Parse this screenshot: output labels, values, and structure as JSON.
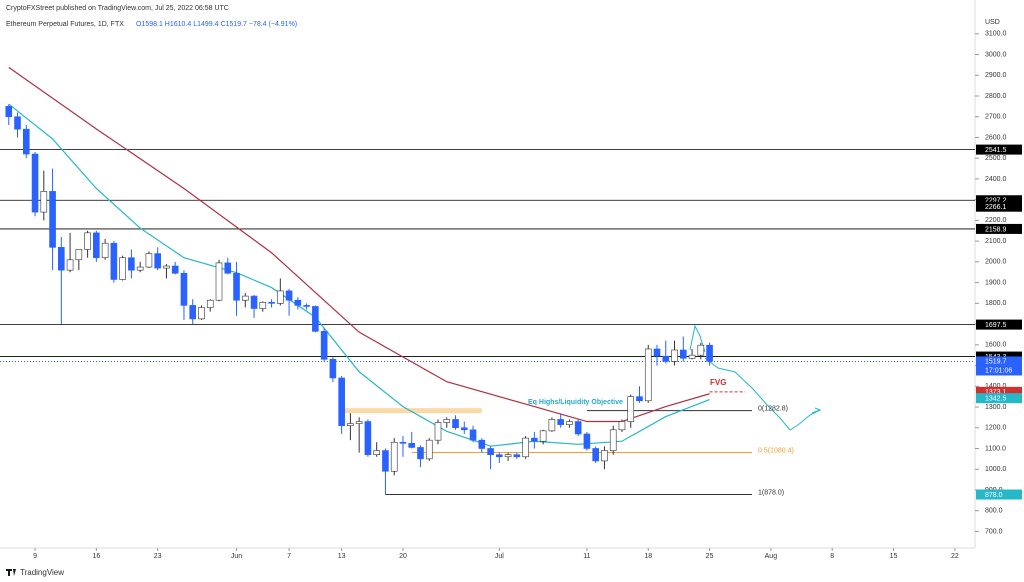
{
  "chart_data": {
    "type": "candlestick",
    "publisher": "CryptoFXStreet published on TradingView.com, Jul 25, 2022 06:58 UTC",
    "title": "Ethereum Perpetual Futures, 1D, FTX",
    "legend_text": "O1598.1 H1610.4 L1499.4 C1519.7 −78.4 (−4.91%)",
    "currency": "USD",
    "brand": "TradingView",
    "up_color": "#ffffff",
    "down_color": "#2962ff",
    "open": [
      2750,
      2700,
      2640,
      2520,
      2240,
      2340,
      2070,
      1960,
      2010,
      2060,
      2140,
      2020,
      2090,
      1915,
      2020,
      1960,
      1975,
      2040,
      1970,
      1980,
      1945,
      1790,
      1725,
      1780,
      1815,
      1995,
      1945,
      1815,
      1835,
      1775,
      1805,
      1800,
      1860,
      1815,
      1790,
      1785,
      1665,
      1530,
      1440,
      1210,
      1220,
      1230,
      1070,
      1090,
      990,
      1130,
      1125,
      1105,
      1050,
      1140,
      1225,
      1240,
      1200,
      1190,
      1140,
      1100,
      1070,
      1060,
      1070,
      1060,
      1150,
      1135,
      1185,
      1240,
      1215,
      1230,
      1170,
      1100,
      1040,
      1090,
      1190,
      1230,
      1350,
      1330,
      1580,
      1545,
      1520,
      1575,
      1535,
      1550,
      1598.1
    ],
    "high": [
      2760,
      2720,
      2660,
      2530,
      2440,
      2450,
      2120,
      2140,
      2060,
      2150,
      2150,
      2110,
      2100,
      2030,
      2060,
      2000,
      2050,
      2070,
      1990,
      2000,
      1960,
      1820,
      1790,
      1820,
      2010,
      2020,
      2000,
      1850,
      1840,
      1810,
      1820,
      1920,
      1870,
      1830,
      1800,
      1790,
      1680,
      1540,
      1450,
      1270,
      1250,
      1240,
      1130,
      1100,
      1150,
      1160,
      1180,
      1115,
      1150,
      1240,
      1250,
      1260,
      1230,
      1210,
      1150,
      1110,
      1080,
      1080,
      1080,
      1160,
      1180,
      1190,
      1250,
      1270,
      1240,
      1240,
      1180,
      1110,
      1110,
      1210,
      1240,
      1360,
      1400,
      1600,
      1600,
      1620,
      1620,
      1640,
      1580,
      1610,
      1610.4
    ],
    "low": [
      2660,
      2600,
      2500,
      2220,
      2200,
      1960,
      1700,
      1950,
      1960,
      2020,
      2000,
      2010,
      1900,
      1910,
      1920,
      1950,
      1970,
      1960,
      1920,
      1940,
      1720,
      1700,
      1720,
      1760,
      1810,
      1940,
      1740,
      1780,
      1730,
      1760,
      1780,
      1790,
      1740,
      1770,
      1770,
      1660,
      1520,
      1420,
      1170,
      1140,
      1080,
      1060,
      1060,
      880,
      970,
      1060,
      1100,
      1010,
      1040,
      1120,
      1200,
      1190,
      1170,
      1130,
      1080,
      1000,
      1030,
      1040,
      1050,
      1050,
      1100,
      1120,
      1180,
      1200,
      1200,
      1160,
      1090,
      1030,
      1000,
      1070,
      1180,
      1200,
      1320,
      1320,
      1500,
      1510,
      1500,
      1520,
      1530,
      1530,
      1499.4
    ],
    "close": [
      2700,
      2640,
      2520,
      2240,
      2340,
      2070,
      1960,
      2010,
      2060,
      2140,
      2020,
      2090,
      1915,
      2020,
      1960,
      1975,
      2040,
      1970,
      1980,
      1945,
      1790,
      1725,
      1780,
      1815,
      1995,
      1945,
      1815,
      1835,
      1775,
      1805,
      1800,
      1860,
      1815,
      1790,
      1785,
      1665,
      1530,
      1440,
      1210,
      1220,
      1230,
      1070,
      1090,
      990,
      1130,
      1125,
      1105,
      1050,
      1140,
      1225,
      1240,
      1200,
      1190,
      1140,
      1100,
      1070,
      1060,
      1070,
      1060,
      1150,
      1135,
      1185,
      1240,
      1215,
      1230,
      1170,
      1100,
      1040,
      1090,
      1190,
      1230,
      1350,
      1330,
      1580,
      1545,
      1520,
      1575,
      1535,
      1550,
      1598,
      1519.7
    ],
    "series": [
      {
        "color": "#26b7c9",
        "x": [
          0,
          5,
          10,
          15,
          20,
          26,
          30,
          35,
          40,
          45,
          50,
          55,
          60,
          65,
          70,
          75,
          80
        ],
        "values": [
          2761,
          2593,
          2354,
          2163,
          2020,
          1948,
          1876,
          1733,
          1470,
          1302,
          1183,
          1111,
          1135,
          1120,
          1135,
          1254,
          1336
        ]
      },
      {
        "color": "#b03040",
        "x": [
          0,
          10,
          20,
          30,
          40,
          50,
          60,
          66,
          70,
          75,
          80
        ],
        "values": [
          2938,
          2641,
          2354,
          2044,
          1661,
          1422,
          1302,
          1230,
          1230,
          1302,
          1364
        ]
      }
    ],
    "xlim": [
      -1,
      110.3
    ],
    "xticks": [
      {
        "value": 3,
        "label": "9"
      },
      {
        "value": 10,
        "label": "16"
      },
      {
        "value": 17,
        "label": "23"
      },
      {
        "value": 26,
        "label": "Jun"
      },
      {
        "value": 32,
        "label": "7"
      },
      {
        "value": 38,
        "label": "13"
      },
      {
        "value": 45,
        "label": "20"
      },
      {
        "value": 56,
        "label": "Jul"
      },
      {
        "value": 66,
        "label": "11"
      },
      {
        "value": 73,
        "label": "18"
      },
      {
        "value": 80,
        "label": "25"
      },
      {
        "value": 87,
        "label": "Aug"
      },
      {
        "value": 94,
        "label": "8"
      },
      {
        "value": 101,
        "label": "15"
      },
      {
        "value": 108,
        "label": "22"
      }
    ],
    "ylim": [
      620,
      3263
    ],
    "yticks": [
      {
        "value": 700,
        "label": "700.0"
      },
      {
        "value": 800,
        "label": "800.0"
      },
      {
        "value": 900,
        "label": "900.0"
      },
      {
        "value": 1000,
        "label": "1000.0"
      },
      {
        "value": 1100,
        "label": "1100.0"
      },
      {
        "value": 1200,
        "label": "1200.0"
      },
      {
        "value": 1300,
        "label": "1300.0"
      },
      {
        "value": 1400,
        "label": "1400.0"
      },
      {
        "value": 1500,
        "label": "1500.0"
      },
      {
        "value": 1600,
        "label": "1600.0"
      },
      {
        "value": 1700,
        "label": "1700.0"
      },
      {
        "value": 1800,
        "label": "1800.0"
      },
      {
        "value": 1900,
        "label": "1900.0"
      },
      {
        "value": 2000,
        "label": "2000.0"
      },
      {
        "value": 2100,
        "label": "2100.0"
      },
      {
        "value": 2200,
        "label": "2200.0"
      },
      {
        "value": 2300,
        "label": "2300.0"
      },
      {
        "value": 2400,
        "label": "2400.0"
      },
      {
        "value": 2500,
        "label": "2500.0"
      },
      {
        "value": 2600,
        "label": "2600.0"
      },
      {
        "value": 2700,
        "label": "2700.0"
      },
      {
        "value": 2800,
        "label": "2800.0"
      },
      {
        "value": 2900,
        "label": "2900.0"
      },
      {
        "value": 3000,
        "label": "3000.0"
      },
      {
        "value": 3100,
        "label": "3100.0"
      }
    ],
    "levels": [
      {
        "value": 2541.5,
        "color": "#000000",
        "line": true
      },
      {
        "value": 2297.2,
        "color": "#000000",
        "line": true
      },
      {
        "value": 2266.1,
        "color": "#000000",
        "line": false
      },
      {
        "value": 2158.9,
        "color": "#000000",
        "line": true
      },
      {
        "value": 1697.5,
        "color": "#000000",
        "line": true
      },
      {
        "value": 1543.3,
        "color": "#000000",
        "line": true
      },
      {
        "value": 1373.1,
        "color": "#d32f2f",
        "line": false
      },
      {
        "value": 1342.5,
        "color": "#26b7c9",
        "line": false
      },
      {
        "value": 878,
        "label": "878.0",
        "color": "#26b7c9",
        "line": false
      }
    ],
    "last_price": {
      "value": 1519.7,
      "countdown": "17:01:06",
      "color": "#2962ff"
    },
    "fib": [
      {
        "value": 1282.8,
        "label": "0(1282.8)",
        "color": "#333333"
      },
      {
        "value": 1080.4,
        "label": "0.5(1080.4)",
        "color": "#f0a030"
      },
      {
        "value": 878,
        "label": "1(878.0)",
        "color": "#333333"
      }
    ],
    "annotations": [
      {
        "text": "Eq Highs/Liquidity Objective",
        "value": 1280,
        "color": "#26a9c9"
      },
      {
        "text": "FVG",
        "value": 1373.1,
        "color": "#d32f2f"
      }
    ]
  }
}
